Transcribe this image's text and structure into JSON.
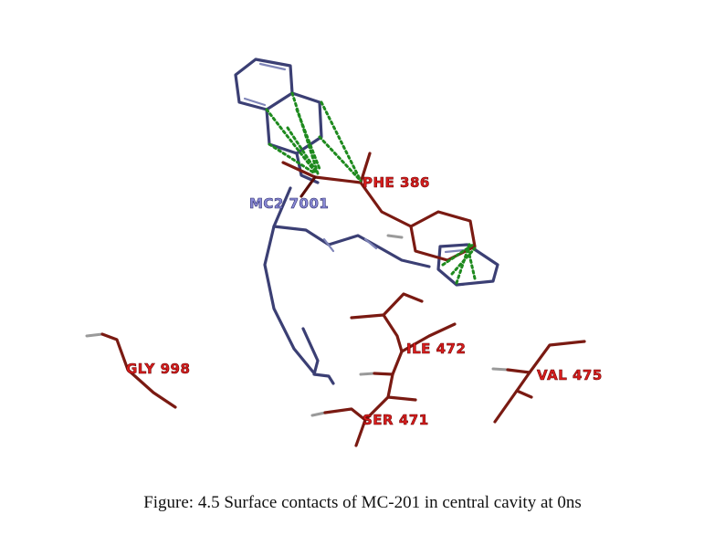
{
  "labels": {
    "phe": "PHE 386",
    "mc2": "MC2 7001",
    "ile": "ILE 472",
    "gly": "GLY 998",
    "val": "VAL 475",
    "ser": "SER 471"
  },
  "caption": "Figure: 4.5 Surface contacts of MC-201 in central cavity at 0ns",
  "colors": {
    "residue": "#7a1a12",
    "ligand": "#3b3f74",
    "contact": "#1e8a1e",
    "hydrogen": "#9a9a9a"
  }
}
